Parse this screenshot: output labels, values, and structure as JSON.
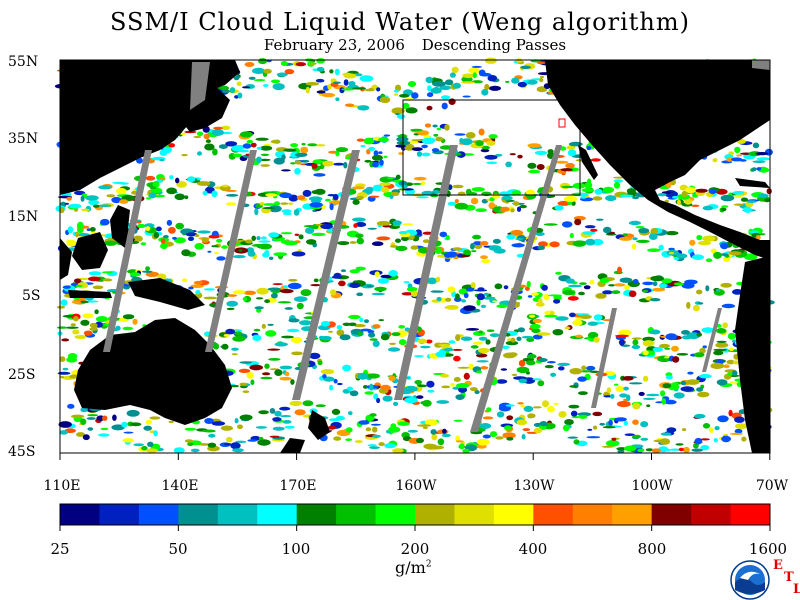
{
  "title": "SSM/I Cloud Liquid Water (Weng algorithm)",
  "subtitle_date": "February 23, 2006",
  "subtitle_pass": "Descending Passes",
  "lat_labels": [
    "55N",
    "35N",
    "15N",
    "5S",
    "25S",
    "45S"
  ],
  "lon_labels": [
    "110E",
    "140E",
    "170E",
    "160W",
    "130W",
    "100W",
    "70W"
  ],
  "colorbar": {
    "colors": [
      "#000080",
      "#0020c0",
      "#0050ff",
      "#009090",
      "#00c0c0",
      "#00ffff",
      "#008000",
      "#00c000",
      "#00ff00",
      "#b0b000",
      "#e0e000",
      "#ffff00",
      "#ff5000",
      "#ff8000",
      "#ffa000",
      "#800000",
      "#c00000",
      "#ff0000"
    ],
    "tick_labels": [
      "25",
      "50",
      "100",
      "200",
      "400",
      "800",
      "1600"
    ]
  },
  "units": "g/m",
  "units_sup": "2",
  "logo": {
    "letters": [
      "E",
      "T",
      "L"
    ]
  },
  "colors": {
    "land": "#000000",
    "gap": "#808080",
    "frame": "#000000"
  }
}
